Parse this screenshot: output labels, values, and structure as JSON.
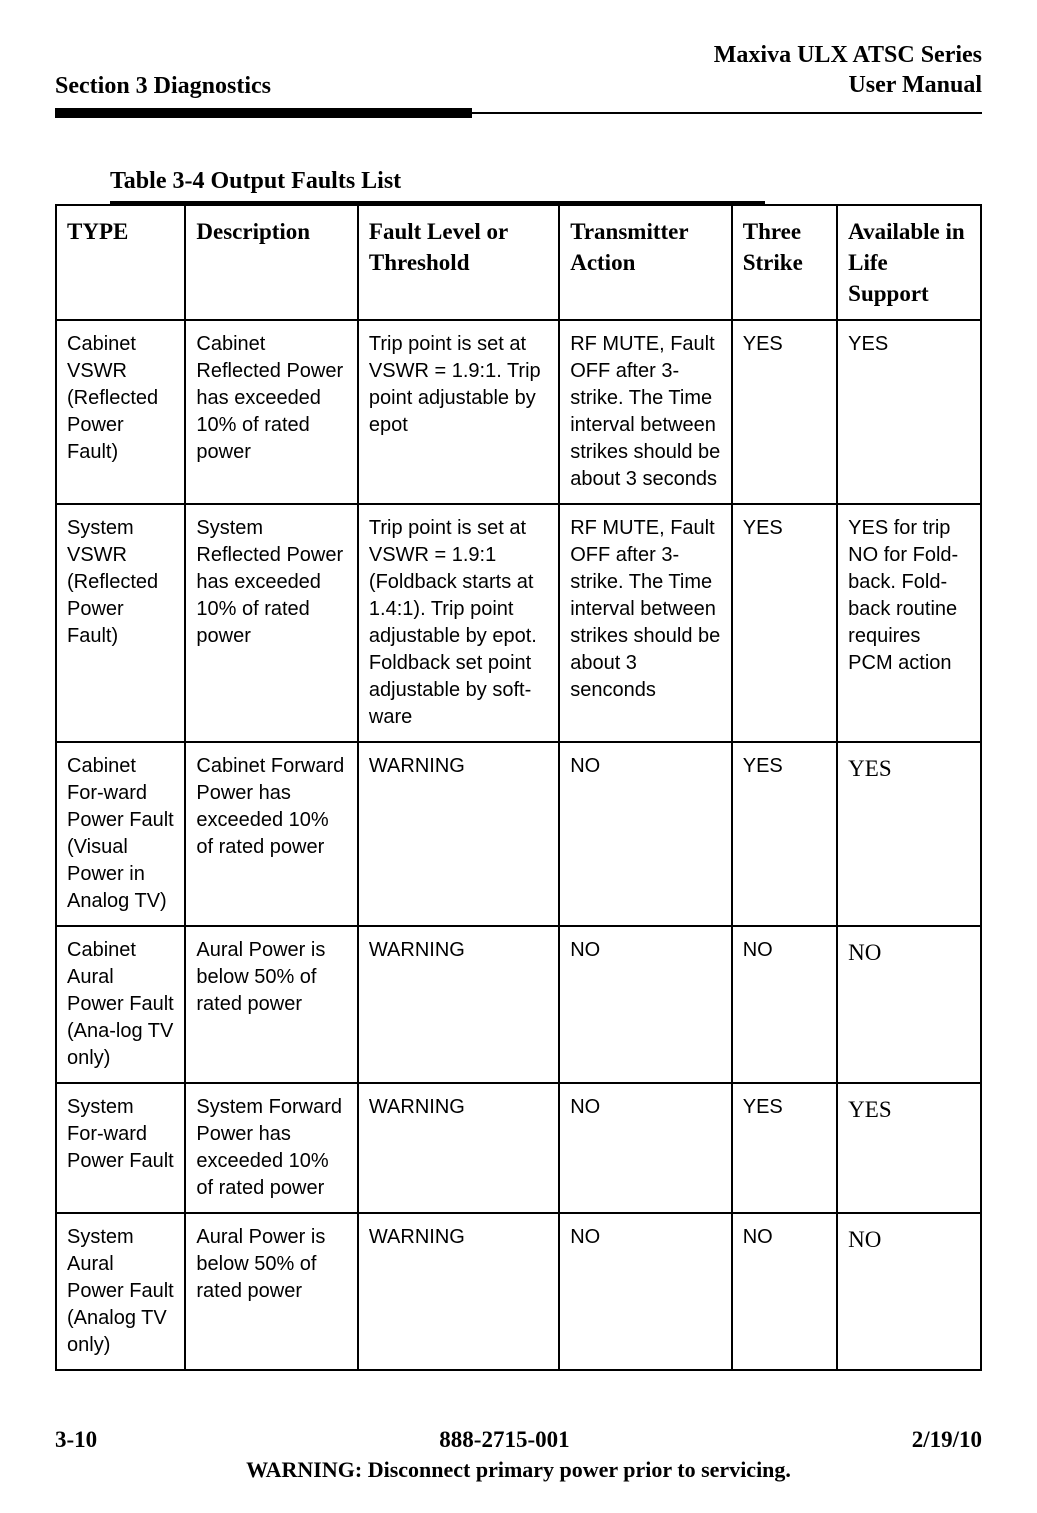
{
  "header": {
    "section_label": "Section 3 Diagnostics",
    "product_title_line1": "Maxiva ULX ATSC Series",
    "product_title_line2": "User Manual"
  },
  "table": {
    "caption": "Table 3-4    Output Faults List",
    "columns": [
      "TYPE",
      "Description",
      "Fault Level or Threshold",
      "Transmitter Action",
      "Three Strike",
      "Available in Life Support"
    ],
    "rows": [
      {
        "type": "Cabinet VSWR (Reflected Power Fault)",
        "description": "Cabinet Reflected Power has exceeded 10% of rated power",
        "fault_level": "Trip point is set at VSWR = 1.9:1. Trip point adjustable by epot",
        "tx_action": "RF MUTE, Fault OFF after 3-strike. The Time interval between strikes should be about 3 seconds",
        "three_strike": "YES",
        "life_support": "YES",
        "life_support_serif": false
      },
      {
        "type": "System VSWR (Reflected Power Fault)",
        "description": "System Reflected Power has exceeded 10% of rated power",
        "fault_level": "Trip point is set at VSWR = 1.9:1 (Foldback starts at 1.4:1). Trip point adjustable by epot. Foldback set point adjustable by soft-ware",
        "tx_action": "RF MUTE, Fault OFF after 3-strike. The Time interval between strikes should be about 3 senconds",
        "three_strike": "YES",
        "life_support": "YES for trip NO for Fold-back. Fold-back routine requires PCM action",
        "life_support_serif": false
      },
      {
        "type": "Cabinet For-ward Power Fault (Visual Power in Analog TV)",
        "description": "Cabinet Forward Power has exceeded 10% of rated power",
        "fault_level": "WARNING",
        "tx_action": "NO",
        "three_strike": "YES",
        "life_support": "YES",
        "life_support_serif": true
      },
      {
        "type": "Cabinet Aural Power Fault (Ana-log TV only)",
        "description": "Aural Power is below 50% of rated power",
        "fault_level": "WARNING",
        "tx_action": "NO",
        "three_strike": "NO",
        "life_support": "NO",
        "life_support_serif": true
      },
      {
        "type": "System For-ward Power Fault",
        "description": "System Forward Power has exceeded 10% of rated power",
        "fault_level": "WARNING",
        "tx_action": "NO",
        "three_strike": "YES",
        "life_support": "YES",
        "life_support_serif": true
      },
      {
        "type": "System Aural Power Fault (Analog TV only)",
        "description": "Aural Power is below 50% of rated power",
        "fault_level": "WARNING",
        "tx_action": "NO",
        "three_strike": "NO",
        "life_support": "NO",
        "life_support_serif": true
      }
    ]
  },
  "footer": {
    "page_number": "3-10",
    "doc_number": "888-2715-001",
    "date": "2/19/10",
    "warning": "WARNING: Disconnect primary power prior to servicing."
  },
  "colors": {
    "text": "#000000",
    "background": "#ffffff",
    "border": "#000000"
  },
  "typography": {
    "header_font": "Times New Roman",
    "body_font": "Arial",
    "header_size_pt": 18,
    "th_size_pt": 17,
    "td_size_pt": 15
  }
}
